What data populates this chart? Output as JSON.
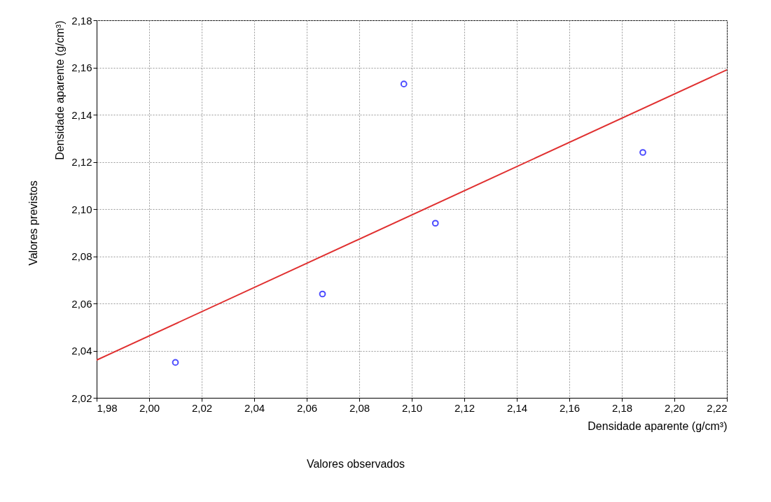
{
  "chart_data": {
    "type": "scatter",
    "xlabel": "Densidade aparente (g/cm³)",
    "ylabel": "Densidade aparente (g/cm³)",
    "annotations": [
      "Valores observados",
      "Valores previstos"
    ],
    "series": [
      {
        "color": "#0000ff",
        "marker": "circle",
        "x": [
          2.01,
          2.066,
          2.097,
          2.109,
          2.188
        ],
        "values": [
          2.035,
          2.064,
          2.153,
          2.094,
          2.124
        ]
      },
      {
        "type": "line",
        "color": "#e03030",
        "line_style": "solid",
        "x": [
          1.98,
          2.22
        ],
        "values": [
          2.036,
          2.159
        ]
      }
    ],
    "xlim": [
      1.98,
      2.22
    ],
    "ylim": [
      2.02,
      2.18
    ],
    "xticks": [
      {
        "value": 1.98,
        "label": "1,98"
      },
      {
        "value": 2.0,
        "label": "2,00"
      },
      {
        "value": 2.02,
        "label": "2,02"
      },
      {
        "value": 2.04,
        "label": "2,04"
      },
      {
        "value": 2.06,
        "label": "2,06"
      },
      {
        "value": 2.08,
        "label": "2,08"
      },
      {
        "value": 2.1,
        "label": "2,10"
      },
      {
        "value": 2.12,
        "label": "2,12"
      },
      {
        "value": 2.14,
        "label": "2,14"
      },
      {
        "value": 2.16,
        "label": "2,16"
      },
      {
        "value": 2.18,
        "label": "2,18"
      },
      {
        "value": 2.2,
        "label": "2,20"
      },
      {
        "value": 2.22,
        "label": "2,22"
      }
    ],
    "yticks": [
      {
        "value": 2.02,
        "label": "2,02"
      },
      {
        "value": 2.04,
        "label": "2,04"
      },
      {
        "value": 2.06,
        "label": "2,06"
      },
      {
        "value": 2.08,
        "label": "2,08"
      },
      {
        "value": 2.1,
        "label": "2,10"
      },
      {
        "value": 2.12,
        "label": "2,12"
      },
      {
        "value": 2.14,
        "label": "2,14"
      },
      {
        "value": 2.16,
        "label": "2,16"
      },
      {
        "value": 2.18,
        "label": "2,18"
      }
    ],
    "grid": true
  }
}
